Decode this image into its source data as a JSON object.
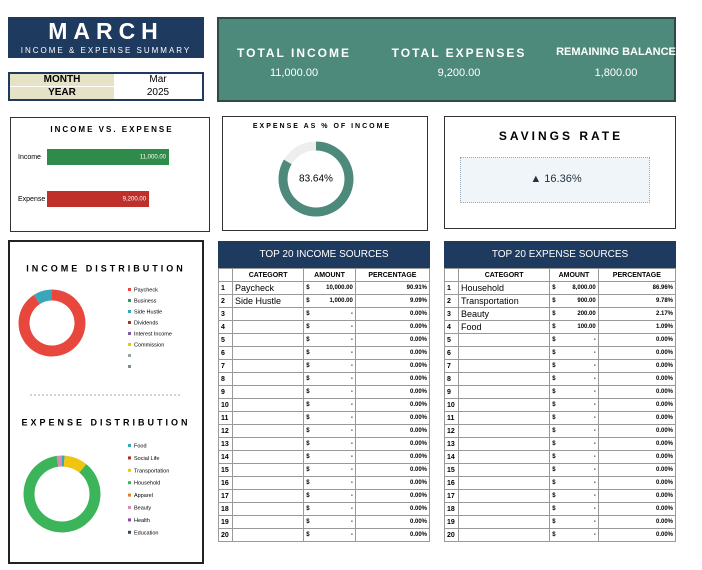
{
  "header": {
    "title": "MARCH",
    "subtitle": "INCOME & EXPENSE SUMMARY",
    "month_label": "MONTH",
    "month": "Mar",
    "year_label": "YEAR",
    "year": "2025"
  },
  "totals": [
    {
      "label": "TOTAL INCOME",
      "value": "11,000.00"
    },
    {
      "label": "TOTAL EXPENSES",
      "value": "9,200.00"
    },
    {
      "label": "REMAINING BALANCE",
      "value": "1,800.00"
    }
  ],
  "savings": {
    "title": "SAVINGS RATE",
    "label": "▲ 16.36%"
  },
  "chart_data": [
    {
      "type": "bar",
      "title": "INCOME VS. EXPENSE",
      "categories": [
        "Income",
        "Expense"
      ],
      "values": [
        11000,
        9200
      ],
      "value_labels": [
        "11,000.00",
        "9,200.00"
      ],
      "colors": [
        "#2e8b4a",
        "#c0302b"
      ]
    },
    {
      "type": "donut",
      "title": "EXPENSE AS % OF INCOME",
      "values": [
        83.64
      ],
      "value_labels": [
        "83.64%"
      ],
      "color": "#4e8a7b"
    },
    {
      "type": "pie",
      "title": "INCOME DISTRIBUTION",
      "categories": [
        "Paycheck",
        "Business",
        "Side Hustle",
        "Dividends",
        "Interest Income",
        "Commission",
        null,
        null
      ],
      "values": [
        10000,
        0,
        1000,
        0,
        0,
        0,
        0,
        0
      ],
      "colors": [
        "#e8473d",
        "#2e9c5c",
        "#3aa6b9",
        "#a93226",
        "#7d5ba6",
        "#f1c40f",
        "#95a5a6",
        "#7f8c8d"
      ]
    },
    {
      "type": "pie",
      "title": "EXPENSE DISTRIBUTION",
      "categories": [
        "Food",
        "Social Life",
        "Transportation",
        "Household",
        "Apparel",
        "Beauty",
        "Health",
        "Education"
      ],
      "values": [
        100,
        0,
        900,
        8000,
        0,
        200,
        0,
        0
      ],
      "colors": [
        "#3aa6b9",
        "#a93226",
        "#f1c40f",
        "#3cb55a",
        "#e67e22",
        "#d98ab5",
        "#8e44ad",
        "#34495e"
      ]
    }
  ],
  "income_table": {
    "title": "TOP 20 INCOME SOURCES",
    "columns": [
      "CATEGORT",
      "AMOUNT",
      "PERCENTAGE"
    ],
    "rows": [
      [
        "1",
        "Paycheck",
        "$",
        "10,000.00",
        "90.91%"
      ],
      [
        "2",
        "Side Hustle",
        "$",
        "1,000.00",
        "9.09%"
      ],
      [
        "3",
        null,
        "$",
        "-",
        "0.00%"
      ],
      [
        "4",
        null,
        "$",
        "-",
        "0.00%"
      ],
      [
        "5",
        null,
        "$",
        "-",
        "0.00%"
      ],
      [
        "6",
        null,
        "$",
        "-",
        "0.00%"
      ],
      [
        "7",
        null,
        "$",
        "-",
        "0.00%"
      ],
      [
        "8",
        null,
        "$",
        "-",
        "0.00%"
      ],
      [
        "9",
        null,
        "$",
        "-",
        "0.00%"
      ],
      [
        "10",
        null,
        "$",
        "-",
        "0.00%"
      ],
      [
        "11",
        null,
        "$",
        "-",
        "0.00%"
      ],
      [
        "12",
        null,
        "$",
        "-",
        "0.00%"
      ],
      [
        "13",
        null,
        "$",
        "-",
        "0.00%"
      ],
      [
        "14",
        null,
        "$",
        "-",
        "0.00%"
      ],
      [
        "15",
        null,
        "$",
        "-",
        "0.00%"
      ],
      [
        "16",
        null,
        "$",
        "-",
        "0.00%"
      ],
      [
        "17",
        null,
        "$",
        "-",
        "0.00%"
      ],
      [
        "18",
        null,
        "$",
        "-",
        "0.00%"
      ],
      [
        "19",
        null,
        "$",
        "-",
        "0.00%"
      ],
      [
        "20",
        null,
        "$",
        "-",
        "0.00%"
      ]
    ]
  },
  "expense_table": {
    "title": "TOP 20 EXPENSE SOURCES",
    "columns": [
      "CATEGORT",
      "AMOUNT",
      "PERCENTAGE"
    ],
    "rows": [
      [
        "1",
        "Household",
        "$",
        "8,000.00",
        "86.96%"
      ],
      [
        "2",
        "Transportation",
        "$",
        "900.00",
        "9.78%"
      ],
      [
        "3",
        "Beauty",
        "$",
        "200.00",
        "2.17%"
      ],
      [
        "4",
        "Food",
        "$",
        "100.00",
        "1.09%"
      ],
      [
        "5",
        null,
        "$",
        "-",
        "0.00%"
      ],
      [
        "6",
        null,
        "$",
        "-",
        "0.00%"
      ],
      [
        "7",
        null,
        "$",
        "-",
        "0.00%"
      ],
      [
        "8",
        null,
        "$",
        "-",
        "0.00%"
      ],
      [
        "9",
        null,
        "$",
        "-",
        "0.00%"
      ],
      [
        "10",
        null,
        "$",
        "-",
        "0.00%"
      ],
      [
        "11",
        null,
        "$",
        "-",
        "0.00%"
      ],
      [
        "12",
        null,
        "$",
        "-",
        "0.00%"
      ],
      [
        "13",
        null,
        "$",
        "-",
        "0.00%"
      ],
      [
        "14",
        null,
        "$",
        "-",
        "0.00%"
      ],
      [
        "15",
        null,
        "$",
        "-",
        "0.00%"
      ],
      [
        "16",
        null,
        "$",
        "-",
        "0.00%"
      ],
      [
        "17",
        null,
        "$",
        "-",
        "0.00%"
      ],
      [
        "18",
        null,
        "$",
        "-",
        "0.00%"
      ],
      [
        "19",
        null,
        "$",
        "-",
        "0.00%"
      ],
      [
        "20",
        null,
        "$",
        "-",
        "0.00%"
      ]
    ]
  }
}
